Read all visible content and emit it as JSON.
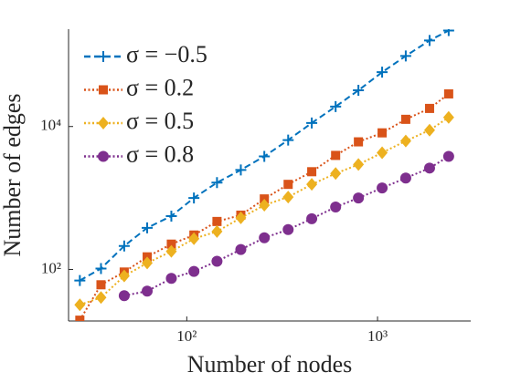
{
  "chart_data": {
    "type": "line",
    "xlabel": "Number of nodes",
    "ylabel": "Number of edges",
    "xscale": "log",
    "yscale": "log",
    "x": [
      27.5,
      35.5,
      47,
      62,
      83,
      109,
      144,
      192,
      255,
      340,
      452,
      603,
      794,
      1057,
      1406,
      1874,
      2360
    ],
    "series": [
      {
        "name": "σ = −0.5",
        "color": "#0072BD",
        "marker": "plus",
        "line_style": "dashed",
        "values": [
          70,
          103,
          213,
          382,
          558,
          1000,
          1640,
          2470,
          3820,
          6460,
          11200,
          19000,
          32100,
          57500,
          97100,
          160000,
          220000
        ]
      },
      {
        "name": "σ = 0.2",
        "color": "#D95319",
        "marker": "square",
        "line_style": "dotted",
        "values": [
          19.5,
          61,
          92,
          150,
          226,
          303,
          469,
          575,
          970,
          1550,
          2330,
          3940,
          6100,
          8150,
          12600,
          17900,
          28600
        ]
      },
      {
        "name": "σ = 0.5",
        "color": "#EDB120",
        "marker": "diamond",
        "line_style": "dotted",
        "values": [
          32,
          40.5,
          81,
          123,
          179,
          269,
          340,
          527,
          793,
          1030,
          1550,
          2200,
          2940,
          4300,
          6270,
          8900,
          13400
        ]
      },
      {
        "name": "σ = 0.8",
        "color": "#7E2F8E",
        "marker": "circle",
        "line_style": "dotted",
        "values": [
          null,
          null,
          43,
          49.7,
          75,
          94,
          130,
          190,
          277,
          361,
          512,
          747,
          1000,
          1380,
          1900,
          2620,
          3820
        ]
      }
    ],
    "xlim": [
      24,
      3080
    ],
    "ylim": [
      19,
      230000
    ],
    "xticks": [
      {
        "value": 100,
        "label": "10²"
      },
      {
        "value": 1000,
        "label": "10³"
      }
    ],
    "yticks": [
      {
        "value": 100,
        "label": "10²"
      },
      {
        "value": 10000,
        "label": "10⁴"
      }
    ],
    "legend": "upper-left"
  }
}
